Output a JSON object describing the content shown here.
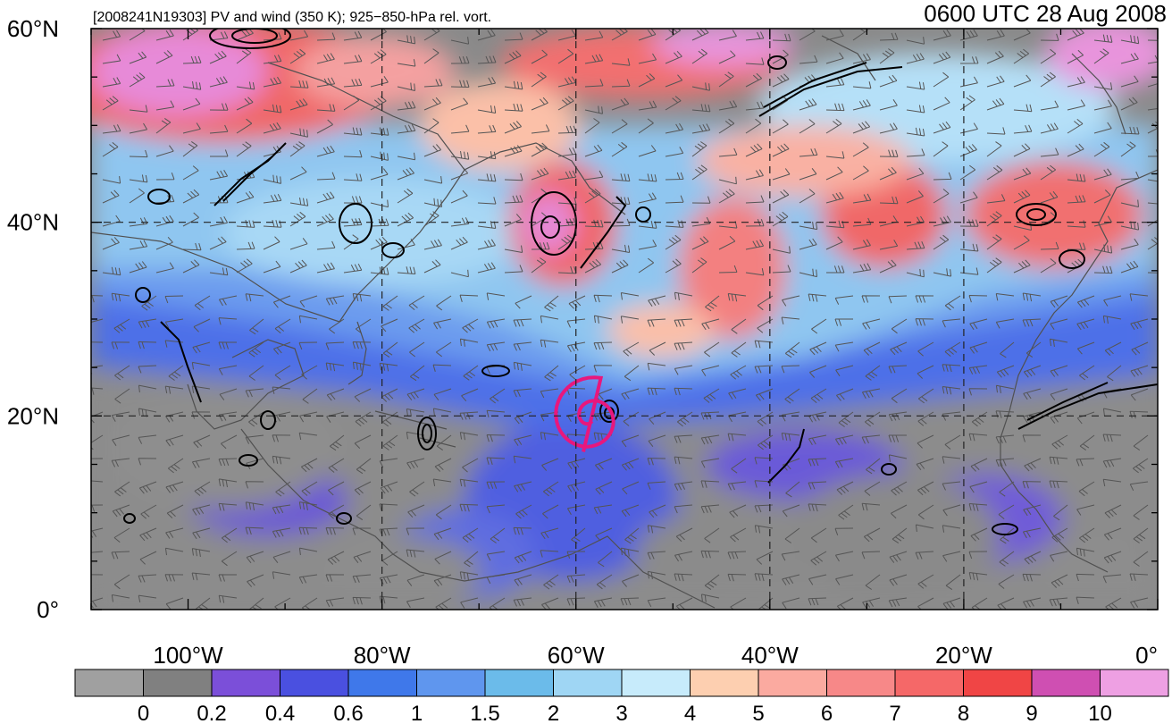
{
  "header": {
    "left_title": "[2008241N19303] PV and wind (350 K); 925−850-hPa rel. vort.",
    "right_title": "0600 UTC 28 Aug 2008"
  },
  "map": {
    "lon_range": [
      -110,
      0
    ],
    "lat_range": [
      0,
      60
    ],
    "lat_labels": [
      {
        "value": 60,
        "text": "60°N"
      },
      {
        "value": 40,
        "text": "40°N"
      },
      {
        "value": 20,
        "text": "20°N"
      },
      {
        "value": 0,
        "text": "0°"
      }
    ],
    "lon_labels": [
      {
        "value": -100,
        "text": "100°W"
      },
      {
        "value": -80,
        "text": "80°W"
      },
      {
        "value": -60,
        "text": "60°W"
      },
      {
        "value": -40,
        "text": "40°W"
      },
      {
        "value": -20,
        "text": "20°W"
      },
      {
        "value": 0,
        "text": "0°"
      }
    ],
    "grid_lats": [
      20,
      40
    ],
    "grid_lons": [
      -80,
      -60,
      -40,
      -20
    ],
    "storm_center": {
      "lon": -58.5,
      "lat": 19.8
    },
    "storm_marker_color": "#e8177d"
  },
  "colorbar": {
    "colors": [
      "#a0a0a0",
      "#808080",
      "#7b4fd9",
      "#4a50e0",
      "#3f78ea",
      "#5f96ee",
      "#6bbbea",
      "#9fd6f4",
      "#c7ebfb",
      "#fdcfb0",
      "#fbaaa0",
      "#f78888",
      "#f56868",
      "#f04545",
      "#cf4fb2",
      "#eea0e3"
    ],
    "labels": [
      "0",
      "0.2",
      "0.4",
      "0.6",
      "1",
      "1.5",
      "2",
      "3",
      "4",
      "5",
      "6",
      "7",
      "8",
      "9",
      "10"
    ]
  }
}
